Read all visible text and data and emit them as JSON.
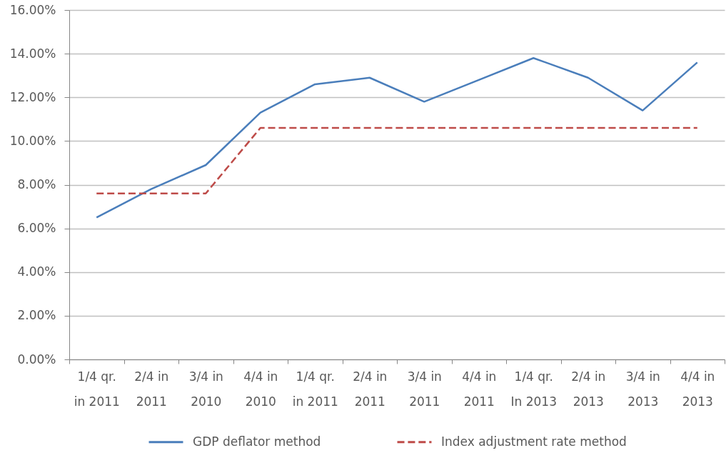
{
  "chart_data": {
    "type": "line",
    "categories": [
      "1/4 qr. in 2011",
      "2/4 in 2011",
      "3/4 in 2010",
      "4/4 in 2010",
      "1/4 qr. in 2011",
      "2/4 in 2011",
      "3/4 in 2011",
      "4/4 in 2011",
      "1/4 qr. In 2013",
      "2/4 in 2013",
      "3/4 in 2013",
      "4/4 in 2013"
    ],
    "ylim": [
      0,
      16
    ],
    "yticks": [
      {
        "value": 0,
        "label": "0.00%"
      },
      {
        "value": 2,
        "label": "2.00%"
      },
      {
        "value": 4,
        "label": "4.00%"
      },
      {
        "value": 6,
        "label": "6.00%"
      },
      {
        "value": 8,
        "label": "8.00%"
      },
      {
        "value": 10,
        "label": "10.00%"
      },
      {
        "value": 12,
        "label": "12.00%"
      },
      {
        "value": 14,
        "label": "14.00%"
      },
      {
        "value": 16,
        "label": "16.00%"
      }
    ],
    "grid": "y",
    "legend": "bottom",
    "marker": "none",
    "series": [
      {
        "name": "GDP deflator method",
        "color": "#4a7ebb",
        "line_style": "solid",
        "values": [
          6.5,
          7.8,
          8.9,
          11.3,
          12.6,
          12.9,
          11.8,
          12.8,
          13.8,
          12.9,
          11.4,
          13.6
        ]
      },
      {
        "name": "Index adjustment rate method",
        "color": "#be4b48",
        "line_style": "dashed",
        "values": [
          7.6,
          7.6,
          7.6,
          10.6,
          10.6,
          10.6,
          10.6,
          10.6,
          10.6,
          10.6,
          10.6,
          10.6
        ]
      }
    ]
  }
}
